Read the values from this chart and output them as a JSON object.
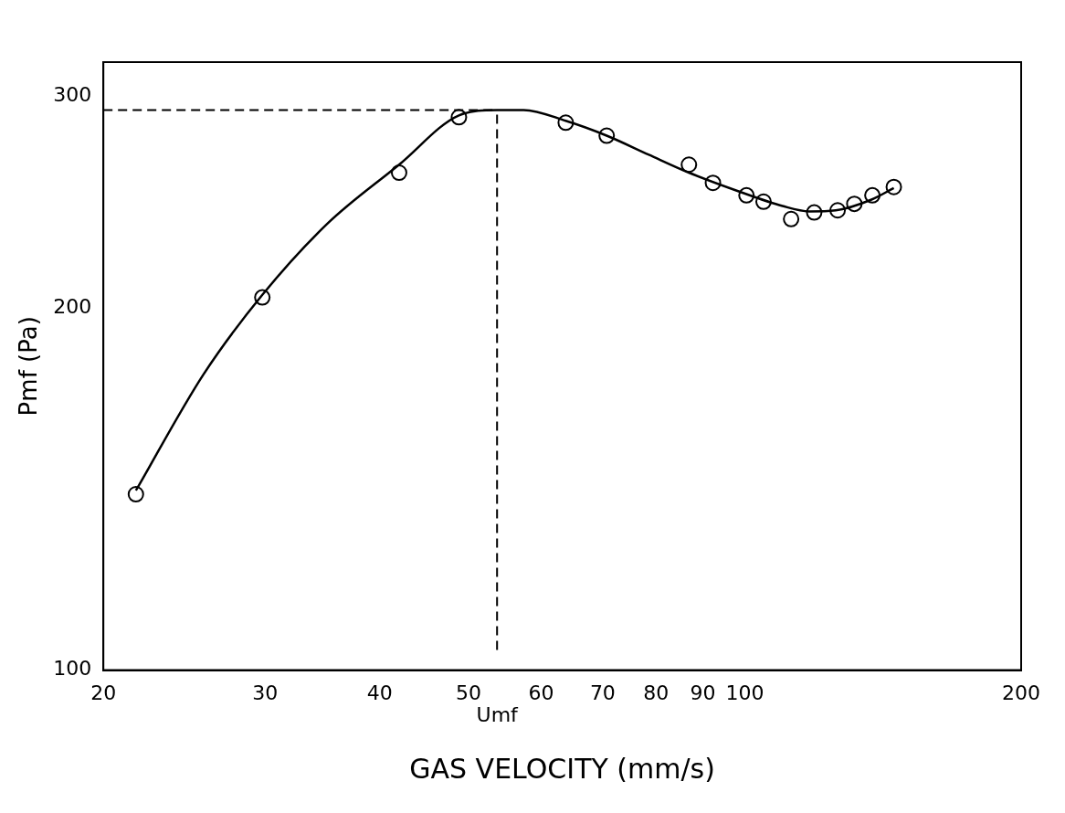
{
  "chart_data": {
    "type": "scatter",
    "xlabel": "GAS VELOCITY (mm/s)",
    "ylabel": "Pmf (Pa)",
    "log": "xy",
    "xlim": [
      20,
      200
    ],
    "ylim": [
      100,
      320
    ],
    "xticks": [
      20,
      30,
      40,
      50,
      60,
      70,
      80,
      90,
      100,
      200
    ],
    "yticks": [
      100,
      200,
      300
    ],
    "grid": false,
    "legend": false,
    "series": [
      {
        "type": "scatter",
        "color": "#000000",
        "marker": "circle",
        "x": [
          21.7,
          29.8,
          42.0,
          48.8,
          63.8,
          70.7,
          86.9,
          92.3,
          100.4,
          104.8,
          112.3,
          119,
          126.2,
          131.6,
          137.7,
          145.3
        ],
        "values": [
          140,
          204,
          259,
          288,
          285,
          278,
          263,
          254,
          248,
          245,
          237,
          240,
          241,
          244,
          248,
          252
        ]
      },
      {
        "type": "line",
        "color": "#000000",
        "marker": "none",
        "line_style": "solid",
        "x": [
          21.7,
          25.7,
          29.8,
          35.1,
          42.0,
          48.8,
          53.7,
          57.4,
          63.8,
          70.7,
          78.6,
          86.9,
          98.3,
          109.9,
          117.5,
          125.6,
          137.4,
          145.3
        ],
        "values": [
          141,
          176,
          205,
          235,
          263,
          289,
          292,
          292,
          286,
          278,
          268,
          259,
          250,
          243,
          240.5,
          241,
          246,
          251.5
        ]
      }
    ],
    "ref_lines": [
      {
        "axis": "y",
        "value": 292,
        "line_style": "dashed"
      },
      {
        "axis": "x",
        "value": 53.7,
        "label": "Umf",
        "line_style": "dashed"
      }
    ]
  }
}
